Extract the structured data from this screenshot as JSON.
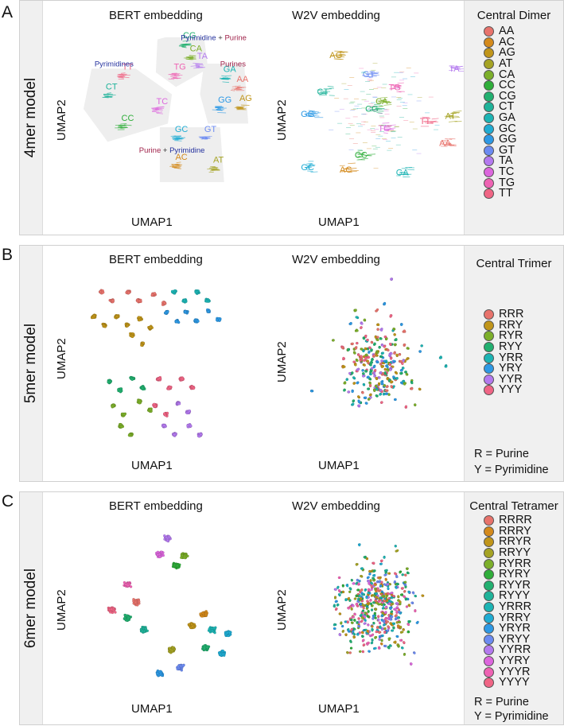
{
  "figure": {
    "panels": [
      {
        "letter": "A",
        "model_label": "4mer model",
        "legend_title": "Central Dimer",
        "notes": []
      },
      {
        "letter": "B",
        "model_label": "5mer model",
        "legend_title": "Central Trimer",
        "notes": [
          "R = Purine",
          "Y = Pyrimidine"
        ]
      },
      {
        "letter": "C",
        "model_label": "6mer model",
        "legend_title": "Central Tetramer",
        "notes": [
          "R = Purine",
          "Y = Pyrimidine"
        ]
      }
    ],
    "bert_title": "BERT embedding",
    "w2v_title": "W2V embedding",
    "xlabel": "UMAP1",
    "ylabel": "UMAP2"
  },
  "chart_data": [
    {
      "type": "scatter",
      "panel": "A",
      "subplot": "BERT embedding",
      "xlabel": "UMAP1",
      "ylabel": "UMAP2",
      "legend": {
        "title": "Central Dimer",
        "entries": [
          "AA",
          "AC",
          "AG",
          "AT",
          "CA",
          "CC",
          "CG",
          "CT",
          "GA",
          "GC",
          "GG",
          "GT",
          "TA",
          "TC",
          "TG",
          "TT"
        ],
        "colors": [
          "#E8736C",
          "#D48A1C",
          "#C0951A",
          "#A5A324",
          "#7CAF2A",
          "#2FAE3A",
          "#22B070",
          "#1FB39A",
          "#1CB4B4",
          "#1FACD3",
          "#2D99E5",
          "#6C8BF2",
          "#B47AEF",
          "#DC67DD",
          "#EE63B3",
          "#F06585"
        ]
      },
      "clusters": [
        {
          "label": "CG",
          "x": 0.22,
          "y": 0.88
        },
        {
          "label": "CA",
          "x": 0.3,
          "y": 0.7
        },
        {
          "label": "TA",
          "x": 0.38,
          "y": 0.6
        },
        {
          "label": "TT",
          "x": -0.55,
          "y": 0.45
        },
        {
          "label": "TG",
          "x": 0.1,
          "y": 0.45
        },
        {
          "label": "CT",
          "x": -0.75,
          "y": 0.18
        },
        {
          "label": "TC",
          "x": -0.12,
          "y": -0.02
        },
        {
          "label": "CC",
          "x": -0.55,
          "y": -0.25
        },
        {
          "label": "GA",
          "x": 0.72,
          "y": 0.42
        },
        {
          "label": "AA",
          "x": 0.88,
          "y": 0.28
        },
        {
          "label": "AG",
          "x": 0.92,
          "y": 0.02
        },
        {
          "label": "GG",
          "x": 0.66,
          "y": 0.0
        },
        {
          "label": "GC",
          "x": 0.12,
          "y": -0.4
        },
        {
          "label": "GT",
          "x": 0.48,
          "y": -0.4
        },
        {
          "label": "AC",
          "x": 0.12,
          "y": -0.78
        },
        {
          "label": "AT",
          "x": 0.58,
          "y": -0.82
        }
      ],
      "group_labels": [
        {
          "text": "Pyrimidine",
          "text2": "Purine",
          "x": 0.62,
          "y": 0.94
        },
        {
          "text": "Pyrimidines",
          "x": -0.62,
          "y": 0.58
        },
        {
          "text": "Purines",
          "x": 0.86,
          "y": 0.58
        },
        {
          "text": "Purine",
          "text2": "Pyrimidine",
          "x": 0.1,
          "y": -0.6
        }
      ],
      "xlim": [
        -1,
        1
      ],
      "ylim": [
        -1,
        1
      ]
    },
    {
      "type": "scatter",
      "panel": "A",
      "subplot": "W2V embedding",
      "xlabel": "UMAP1",
      "ylabel": "UMAP2",
      "clusters": [
        {
          "label": "AG",
          "x": -0.55,
          "y": 0.78
        },
        {
          "label": "GT",
          "x": -0.12,
          "y": 0.52
        },
        {
          "label": "TG",
          "x": 0.22,
          "y": 0.34
        },
        {
          "label": "CT",
          "x": -0.72,
          "y": 0.28
        },
        {
          "label": "CA",
          "x": 0.05,
          "y": 0.15
        },
        {
          "label": "CG",
          "x": -0.08,
          "y": 0.05
        },
        {
          "label": "GG",
          "x": -0.92,
          "y": -0.02
        },
        {
          "label": "TC",
          "x": 0.08,
          "y": -0.22
        },
        {
          "label": "TT",
          "x": 0.62,
          "y": -0.12
        },
        {
          "label": "AT",
          "x": 0.95,
          "y": -0.05
        },
        {
          "label": "AA",
          "x": 0.88,
          "y": -0.42
        },
        {
          "label": "TA",
          "x": 1.0,
          "y": 0.6
        },
        {
          "label": "CC",
          "x": -0.22,
          "y": -0.58
        },
        {
          "label": "AC",
          "x": -0.42,
          "y": -0.78
        },
        {
          "label": "GC",
          "x": -0.92,
          "y": -0.75
        },
        {
          "label": "GA",
          "x": 0.32,
          "y": -0.82
        }
      ],
      "xlim": [
        -1,
        1
      ],
      "ylim": [
        -1,
        1
      ]
    },
    {
      "type": "scatter",
      "panel": "B",
      "subplot": "BERT embedding",
      "xlabel": "UMAP1",
      "ylabel": "UMAP2",
      "legend": {
        "title": "Central Trimer",
        "entries": [
          "RRR",
          "RRY",
          "RYR",
          "RYY",
          "YRR",
          "YRY",
          "YYR",
          "YYY"
        ],
        "colors": [
          "#E8736C",
          "#C0951A",
          "#7CAF2A",
          "#22B070",
          "#1CB4B4",
          "#2D99E5",
          "#B47AEF",
          "#F06585"
        ]
      },
      "clusters": [
        {
          "class": "RRR",
          "x": -0.7,
          "y": 0.85
        },
        {
          "class": "RRR",
          "x": -0.35,
          "y": 0.85
        },
        {
          "class": "RRR",
          "x": -0.02,
          "y": 0.82
        },
        {
          "class": "RRY",
          "x": -0.8,
          "y": 0.55
        },
        {
          "class": "RRY",
          "x": -0.5,
          "y": 0.55
        },
        {
          "class": "RRY",
          "x": -0.2,
          "y": 0.52
        },
        {
          "class": "RRY",
          "x": -0.3,
          "y": 0.32
        },
        {
          "class": "YRR",
          "x": 0.25,
          "y": 0.85
        },
        {
          "class": "YRR",
          "x": 0.55,
          "y": 0.85
        },
        {
          "class": "YRY",
          "x": 0.4,
          "y": 0.6
        },
        {
          "class": "YRY",
          "x": 0.7,
          "y": 0.62
        },
        {
          "class": "YRY",
          "x": 0.15,
          "y": 0.6
        },
        {
          "class": "RYY",
          "x": -0.6,
          "y": -0.25
        },
        {
          "class": "RYY",
          "x": -0.3,
          "y": -0.22
        },
        {
          "class": "RYR",
          "x": -0.55,
          "y": -0.55
        },
        {
          "class": "RYR",
          "x": -0.2,
          "y": -0.5
        },
        {
          "class": "RYR",
          "x": -0.45,
          "y": -0.8
        },
        {
          "class": "YYY",
          "x": 0.05,
          "y": -0.22
        },
        {
          "class": "YYY",
          "x": 0.35,
          "y": -0.22
        },
        {
          "class": "YYY",
          "x": 0.0,
          "y": -0.55
        },
        {
          "class": "YYR",
          "x": 0.3,
          "y": -0.52
        },
        {
          "class": "YYR",
          "x": 0.12,
          "y": -0.8
        },
        {
          "class": "YYR",
          "x": 0.45,
          "y": -0.8
        }
      ],
      "xlim": [
        -1,
        1
      ],
      "ylim": [
        -1,
        1
      ]
    },
    {
      "type": "scatter",
      "panel": "B",
      "subplot": "W2V embedding",
      "xlabel": "UMAP1",
      "ylabel": "UMAP2",
      "distribution": "dense central cloud of all eight trimer classes intermixed, sparse outliers at top and right",
      "xlim": [
        -1,
        1
      ],
      "ylim": [
        -1,
        1
      ]
    },
    {
      "type": "scatter",
      "panel": "C",
      "subplot": "BERT embedding",
      "xlabel": "UMAP1",
      "ylabel": "UMAP2",
      "legend": {
        "title": "Central Tetramer",
        "entries": [
          "RRRR",
          "RRRY",
          "RRYR",
          "RRYY",
          "RYRR",
          "RYRY",
          "RYYR",
          "RYYY",
          "YRRR",
          "YRRY",
          "YRYR",
          "YRYY",
          "YYRR",
          "YYRY",
          "YYYR",
          "YYYY"
        ],
        "colors": [
          "#E8736C",
          "#D48A1C",
          "#C0951A",
          "#A5A324",
          "#7CAF2A",
          "#2FAE3A",
          "#22B070",
          "#1FB39A",
          "#1CB4B4",
          "#1FACD3",
          "#2D99E5",
          "#6C8BF2",
          "#B47AEF",
          "#DC67DD",
          "#EE63B3",
          "#F06585"
        ]
      },
      "clusters": [
        {
          "class": "YYRR",
          "x": 0.05,
          "y": 0.9
        },
        {
          "class": "YYRY",
          "x": -0.05,
          "y": 0.7
        },
        {
          "class": "RYRY",
          "x": 0.15,
          "y": 0.55
        },
        {
          "class": "RYRR",
          "x": 0.25,
          "y": 0.68
        },
        {
          "class": "YYYR",
          "x": -0.45,
          "y": 0.32
        },
        {
          "class": "RRRR",
          "x": -0.35,
          "y": 0.1
        },
        {
          "class": "YYYY",
          "x": -0.65,
          "y": 0.0
        },
        {
          "class": "RYYR",
          "x": -0.45,
          "y": -0.1
        },
        {
          "class": "RYYY",
          "x": -0.25,
          "y": -0.25
        },
        {
          "class": "RRRY",
          "x": 0.5,
          "y": -0.05
        },
        {
          "class": "RRYR",
          "x": 0.35,
          "y": -0.2
        },
        {
          "class": "YRRR",
          "x": 0.6,
          "y": -0.25
        },
        {
          "class": "YRRY",
          "x": 0.8,
          "y": -0.3
        },
        {
          "class": "RRYY",
          "x": 0.1,
          "y": -0.5
        },
        {
          "class": "YRYR",
          "x": -0.05,
          "y": -0.8
        },
        {
          "class": "YRYY",
          "x": 0.2,
          "y": -0.72
        },
        {
          "class": "RYYR",
          "x": 0.52,
          "y": -0.48
        },
        {
          "class": "YRRY",
          "x": 0.72,
          "y": -0.55
        }
      ],
      "xlim": [
        -1,
        1
      ],
      "ylim": [
        -1,
        1
      ]
    },
    {
      "type": "scatter",
      "panel": "C",
      "subplot": "W2V embedding",
      "xlabel": "UMAP1",
      "ylabel": "UMAP2",
      "distribution": "large dense oval cloud with all sixteen tetramer classes intermixed, heaviest in upper center",
      "xlim": [
        -1,
        1
      ],
      "ylim": [
        -1,
        1
      ]
    }
  ]
}
